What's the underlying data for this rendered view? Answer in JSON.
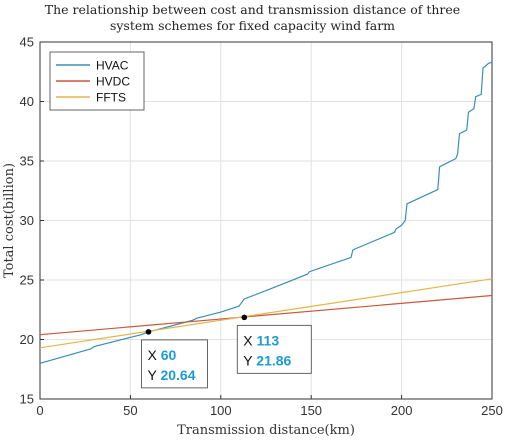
{
  "chart_data": {
    "type": "line",
    "title_lines": [
      "The relationship between cost and transmission distance of three",
      "system schemes for fixed capacity wind farm"
    ],
    "xlabel": "Transmission distance(km)",
    "ylabel": "Total cost(billion)",
    "xlim": [
      0,
      250
    ],
    "ylim": [
      15,
      45
    ],
    "xticks": [
      0,
      50,
      100,
      150,
      200,
      250
    ],
    "yticks": [
      15,
      20,
      25,
      30,
      35,
      40,
      45
    ],
    "grid": true,
    "legend_position": "top-left",
    "series": [
      {
        "name": "HVAC",
        "color": "#3a8fb7",
        "x": [
          0,
          28,
          30,
          56,
          60,
          84,
          87,
          100,
          110,
          111,
          113,
          130,
          148,
          149,
          172,
          173,
          174,
          196,
          197,
          200,
          202,
          203,
          220,
          221,
          222,
          230,
          231,
          232,
          236,
          237,
          240,
          241,
          244,
          245,
          248,
          250
        ],
        "y": [
          18.0,
          19.2,
          19.4,
          20.4,
          20.64,
          21.6,
          21.8,
          22.3,
          22.8,
          23.0,
          23.4,
          24.4,
          25.5,
          25.7,
          26.9,
          27.5,
          27.6,
          29.0,
          29.3,
          29.6,
          30.0,
          31.4,
          32.6,
          34.5,
          34.6,
          35.2,
          35.6,
          37.3,
          37.6,
          39.1,
          39.4,
          40.4,
          40.6,
          42.8,
          43.2,
          43.3
        ]
      },
      {
        "name": "HVDC",
        "color": "#c8593a",
        "x": [
          0,
          250
        ],
        "y": [
          20.4,
          23.7
        ]
      },
      {
        "name": "FFTS",
        "color": "#e3b64a",
        "x": [
          0,
          250
        ],
        "y": [
          19.3,
          25.1
        ]
      }
    ],
    "datatips": [
      {
        "x_label": "X",
        "x": 60,
        "y_label": "Y",
        "y": 20.64
      },
      {
        "x_label": "X",
        "x": 113,
        "y_label": "Y",
        "y": 21.86
      }
    ]
  },
  "colors": {
    "tip_value": "#1d9bd7",
    "grid": "#e2e2e2",
    "axis": "#333333"
  }
}
